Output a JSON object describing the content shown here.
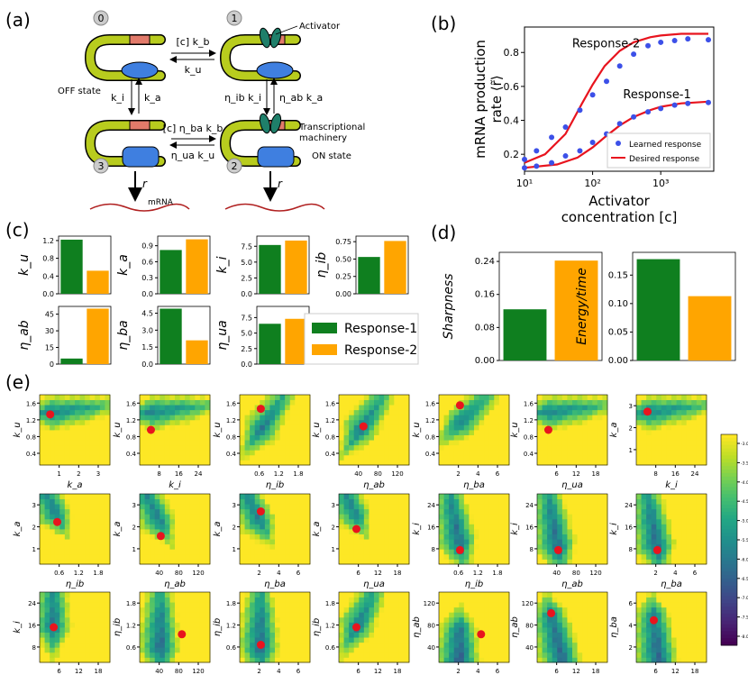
{
  "panels": {
    "a": "(a)",
    "b": "(b)",
    "c": "(c)",
    "d": "(d)",
    "e": "(e)"
  },
  "schematic": {
    "states": [
      "0",
      "1",
      "2",
      "3"
    ],
    "labels": {
      "activator": "Activator",
      "off_state": "OFF state",
      "machinery": "Transcriptional\nmachinery",
      "on_state": "ON state",
      "mrna": "mRNA",
      "r": "r"
    },
    "rates": {
      "top_forward": "[c] k_b",
      "top_back": "k_u",
      "left_down": "k_i",
      "left_up": "k_a",
      "right_left": "η_ib k_i",
      "right_right": "η_ab k_a",
      "bottom_forward": "[c] η_ba k_b",
      "bottom_back": "η_ua k_u"
    }
  },
  "chart_data": [
    {
      "id": "b",
      "type": "line",
      "title": "",
      "xlabel": "Activator\nconcentration [c]",
      "ylabel": "mRNA production\nrate ⟨r̃⟩",
      "xscale": "log",
      "xlim": [
        10,
        6000
      ],
      "ylim": [
        0.1,
        0.95
      ],
      "xticks": [
        "10¹",
        "10²",
        "10³"
      ],
      "yticks": [
        "0.2",
        "0.4",
        "0.6",
        "0.8"
      ],
      "annotations": [
        "Response-2",
        "Response-1"
      ],
      "legend": [
        "Learned response",
        "Desired response"
      ],
      "series": [
        {
          "name": "Response-2 learned",
          "style": "points",
          "x": [
            10,
            15,
            25,
            40,
            65,
            100,
            160,
            250,
            400,
            650,
            1000,
            1600,
            2500,
            5000
          ],
          "y": [
            0.17,
            0.22,
            0.3,
            0.36,
            0.46,
            0.55,
            0.63,
            0.72,
            0.79,
            0.84,
            0.86,
            0.87,
            0.88,
            0.875
          ]
        },
        {
          "name": "Response-1 learned",
          "style": "points",
          "x": [
            10,
            15,
            25,
            40,
            65,
            100,
            160,
            250,
            400,
            650,
            1000,
            1600,
            2500,
            5000
          ],
          "y": [
            0.12,
            0.13,
            0.15,
            0.19,
            0.22,
            0.27,
            0.32,
            0.38,
            0.42,
            0.45,
            0.47,
            0.49,
            0.5,
            0.505
          ]
        },
        {
          "name": "Response-2 desired",
          "style": "line",
          "x": [
            10,
            20,
            40,
            70,
            100,
            150,
            250,
            400,
            700,
            1000,
            2000,
            5000
          ],
          "y": [
            0.15,
            0.2,
            0.32,
            0.5,
            0.61,
            0.72,
            0.81,
            0.86,
            0.89,
            0.9,
            0.91,
            0.91
          ]
        },
        {
          "name": "Response-1 desired",
          "style": "line",
          "x": [
            10,
            30,
            60,
            100,
            150,
            250,
            400,
            700,
            1000,
            2000,
            5000
          ],
          "y": [
            0.12,
            0.14,
            0.18,
            0.24,
            0.3,
            0.37,
            0.42,
            0.46,
            0.48,
            0.5,
            0.51
          ]
        }
      ]
    },
    {
      "id": "c",
      "type": "bar",
      "legend": [
        "Response-1",
        "Response-2"
      ],
      "subplots": [
        {
          "ylabel": "k_u",
          "yticks": [
            "0.0",
            "0.4",
            "0.8",
            "1.2"
          ],
          "ymax": 1.3,
          "values": [
            1.22,
            0.52
          ]
        },
        {
          "ylabel": "k_a",
          "yticks": [
            "0.0",
            "0.3",
            "0.6",
            "0.9"
          ],
          "ymax": 1.08,
          "values": [
            0.82,
            1.02
          ]
        },
        {
          "ylabel": "k_i",
          "yticks": [
            "0.0",
            "2.5",
            "5.0",
            "7.5"
          ],
          "ymax": 9.1,
          "values": [
            7.7,
            8.4
          ]
        },
        {
          "ylabel": "η_ib",
          "yticks": [
            "0.00",
            "0.25",
            "0.50",
            "0.75"
          ],
          "ymax": 0.83,
          "values": [
            0.53,
            0.76
          ]
        },
        {
          "ylabel": "η_ab",
          "yticks": [
            "0",
            "15",
            "30",
            "45"
          ],
          "ymax": 52,
          "values": [
            5,
            50
          ]
        },
        {
          "ylabel": "η_ba",
          "yticks": [
            "0.0",
            "1.5",
            "3.0",
            "4.5"
          ],
          "ymax": 5.1,
          "values": [
            4.9,
            2.1
          ]
        },
        {
          "ylabel": "η_ua",
          "yticks": [
            "0.0",
            "2.5",
            "5.0",
            "7.5"
          ],
          "ymax": 9.3,
          "values": [
            6.5,
            7.3
          ]
        }
      ]
    },
    {
      "id": "d",
      "type": "bar",
      "subplots": [
        {
          "ylabel": "Sharpness",
          "yticks": [
            "0.00",
            "0.08",
            "0.16",
            "0.24"
          ],
          "ymax": 0.262,
          "values": [
            0.124,
            0.242
          ]
        },
        {
          "ylabel": "Energy/time",
          "yticks": [
            "0.00",
            "0.05",
            "0.10",
            "0.15"
          ],
          "ymax": 0.19,
          "values": [
            0.178,
            0.113
          ]
        }
      ]
    },
    {
      "id": "e",
      "type": "heatmap",
      "colorbar": {
        "ticks": [
          "-3.0",
          "-3.5",
          "-4.0",
          "-4.5",
          "-5.0",
          "-5.5",
          "-6.0",
          "-6.5",
          "-7.0",
          "-7.5",
          "-8.0"
        ]
      },
      "grid": [
        {
          "x": "k_a",
          "y": "k_u",
          "xt": [
            "1",
            "2",
            "3"
          ],
          "yt": [
            "0.4",
            "0.8",
            "1.2",
            "1.6"
          ],
          "m": [
            0.5,
            0.8
          ],
          "v": [
            0.16,
            0.76
          ],
          "p": [
            0.15,
            0.72
          ]
        },
        {
          "x": "k_i",
          "y": "k_u",
          "xt": [
            "8",
            "16",
            "24"
          ],
          "yt": [
            "0.4",
            "0.8",
            "1.2",
            "1.6"
          ],
          "m": [
            0.5,
            0.8
          ],
          "v": [
            0.16,
            0.76
          ],
          "p": [
            0.16,
            0.5
          ]
        },
        {
          "x": "η_ib",
          "y": "k_u",
          "xt": [
            "0.6",
            "1.2",
            "1.8"
          ],
          "yt": [
            "0.4",
            "0.8",
            "1.2",
            "1.6"
          ],
          "m": [
            0.5,
            0.8
          ],
          "v": [
            0.3,
            0.5
          ],
          "p": [
            0.3,
            0.8
          ]
        },
        {
          "x": "η_ab",
          "y": "k_u",
          "xt": [
            "40",
            "80",
            "120"
          ],
          "yt": [
            "0.4",
            "0.8",
            "1.2",
            "1.6"
          ],
          "m": [
            0.5,
            0.8
          ],
          "v": [
            0.3,
            0.5
          ],
          "p": [
            0.35,
            0.55
          ]
        },
        {
          "x": "η_ba",
          "y": "k_u",
          "xt": [
            "2",
            "4",
            "6"
          ],
          "yt": [
            "0.4",
            "0.8",
            "1.2",
            "1.6"
          ],
          "m": [
            0.5,
            0.8
          ],
          "v": [
            0.3,
            0.6
          ],
          "p": [
            0.3,
            0.85
          ]
        },
        {
          "x": "η_ua",
          "y": "k_u",
          "xt": [
            "6",
            "12",
            "18"
          ],
          "yt": [
            "0.4",
            "0.8",
            "1.2",
            "1.6"
          ],
          "m": [
            0.5,
            0.8
          ],
          "v": [
            0.16,
            0.76
          ],
          "p": [
            0.16,
            0.5
          ]
        },
        {
          "x": "k_i",
          "y": "k_a",
          "xt": [
            "8",
            "16",
            "24"
          ],
          "yt": [
            "1",
            "2",
            "3"
          ],
          "m": [
            0.5,
            0.8
          ],
          "v": [
            0.16,
            0.76
          ],
          "p": [
            0.16,
            0.76
          ]
        },
        {
          "x": "η_ib",
          "y": "k_a",
          "xt": [
            "0.6",
            "1.2",
            "1.8"
          ],
          "yt": [
            "1",
            "2",
            "3"
          ],
          "m": [
            0.2,
            0.8
          ],
          "v": [
            0.25,
            0.7
          ],
          "p": [
            0.25,
            0.6
          ]
        },
        {
          "x": "η_ab",
          "y": "k_a",
          "xt": [
            "40",
            "80",
            "120"
          ],
          "yt": [
            "1",
            "2",
            "3"
          ],
          "m": [
            0.2,
            0.8
          ],
          "v": [
            0.3,
            0.6
          ],
          "p": [
            0.3,
            0.4
          ]
        },
        {
          "x": "η_ba",
          "y": "k_a",
          "xt": [
            "2",
            "4",
            "6"
          ],
          "yt": [
            "1",
            "2",
            "3"
          ],
          "m": [
            0.2,
            0.8
          ],
          "v": [
            0.3,
            0.6
          ],
          "p": [
            0.3,
            0.75
          ]
        },
        {
          "x": "η_ua",
          "y": "k_a",
          "xt": [
            "6",
            "12",
            "18"
          ],
          "yt": [
            "1",
            "2",
            "3"
          ],
          "m": [
            0.2,
            0.8
          ],
          "v": [
            0.25,
            0.7
          ],
          "p": [
            0.25,
            0.5
          ]
        },
        {
          "x": "η_ib",
          "y": "k_i",
          "xt": [
            "0.6",
            "1.2",
            "1.8"
          ],
          "yt": [
            "8",
            "16",
            "24"
          ],
          "m": [
            0.2,
            0.8
          ],
          "v": [
            0.3,
            0.3
          ],
          "p": [
            0.3,
            0.2
          ]
        },
        {
          "x": "η_ab",
          "y": "k_i",
          "xt": [
            "40",
            "80",
            "120"
          ],
          "yt": [
            "8",
            "16",
            "24"
          ],
          "m": [
            0.2,
            0.8
          ],
          "v": [
            0.3,
            0.25
          ],
          "p": [
            0.3,
            0.2
          ]
        },
        {
          "x": "η_ba",
          "y": "k_i",
          "xt": [
            "2",
            "4",
            "6"
          ],
          "yt": [
            "8",
            "16",
            "24"
          ],
          "m": [
            0.2,
            0.8
          ],
          "v": [
            0.3,
            0.25
          ],
          "p": [
            0.3,
            0.2
          ]
        },
        {
          "x": "η_ua",
          "y": "k_i",
          "xt": [
            "6",
            "12",
            "18"
          ],
          "yt": [
            "8",
            "16",
            "24"
          ],
          "m": [
            0.2,
            0.8
          ],
          "v": [
            0.2,
            0.5
          ],
          "p": [
            0.2,
            0.5
          ]
        },
        {
          "x": "η_ab",
          "y": "η_ib",
          "xt": [
            "40",
            "80",
            "120"
          ],
          "yt": [
            "0.6",
            "1.2",
            "1.8"
          ],
          "m": [
            0.3,
            0.6
          ],
          "v": [
            0.3,
            0.2
          ],
          "p": [
            0.6,
            0.4
          ]
        },
        {
          "x": "η_ba",
          "y": "η_ib",
          "xt": [
            "2",
            "4",
            "6"
          ],
          "yt": [
            "0.6",
            "1.2",
            "1.8"
          ],
          "m": [
            0.3,
            0.6
          ],
          "v": [
            0.3,
            0.2
          ],
          "p": [
            0.3,
            0.25
          ]
        },
        {
          "x": "η_ua",
          "y": "η_ib",
          "xt": [
            "6",
            "12",
            "18"
          ],
          "yt": [
            "0.6",
            "1.2",
            "1.8"
          ],
          "m": [
            0.3,
            0.6
          ],
          "v": [
            0.25,
            0.5
          ],
          "p": [
            0.25,
            0.5
          ]
        },
        {
          "x": "η_ba",
          "y": "η_ab",
          "xt": [
            "2",
            "4",
            "6"
          ],
          "yt": [
            "40",
            "80",
            "120"
          ],
          "m": [
            0.3,
            0.3
          ],
          "v": [
            0.3,
            0.5
          ],
          "p": [
            0.6,
            0.4
          ]
        },
        {
          "x": "η_ua",
          "y": "η_ab",
          "xt": [
            "6",
            "12",
            "18"
          ],
          "yt": [
            "40",
            "80",
            "120"
          ],
          "m": [
            0.3,
            0.3
          ],
          "v": [
            0.2,
            0.7
          ],
          "p": [
            0.2,
            0.7
          ]
        },
        {
          "x": "η_ua",
          "y": "η_ba",
          "xt": [
            "6",
            "12",
            "18"
          ],
          "yt": [
            "2",
            "4",
            "6"
          ],
          "m": [
            0.3,
            0.25
          ],
          "v": [
            0.25,
            0.7
          ],
          "p": [
            0.25,
            0.6
          ]
        }
      ]
    }
  ],
  "colors": {
    "green": "#0f7f1f",
    "orange": "#ffa500",
    "red": "#e8141e",
    "blue": "#3c50e8",
    "teal": "#1f7f6a",
    "gene": "#b8cc1e",
    "machine": "#3f7fe0",
    "pink": "#e27a6a",
    "mrna": "#b02020"
  }
}
